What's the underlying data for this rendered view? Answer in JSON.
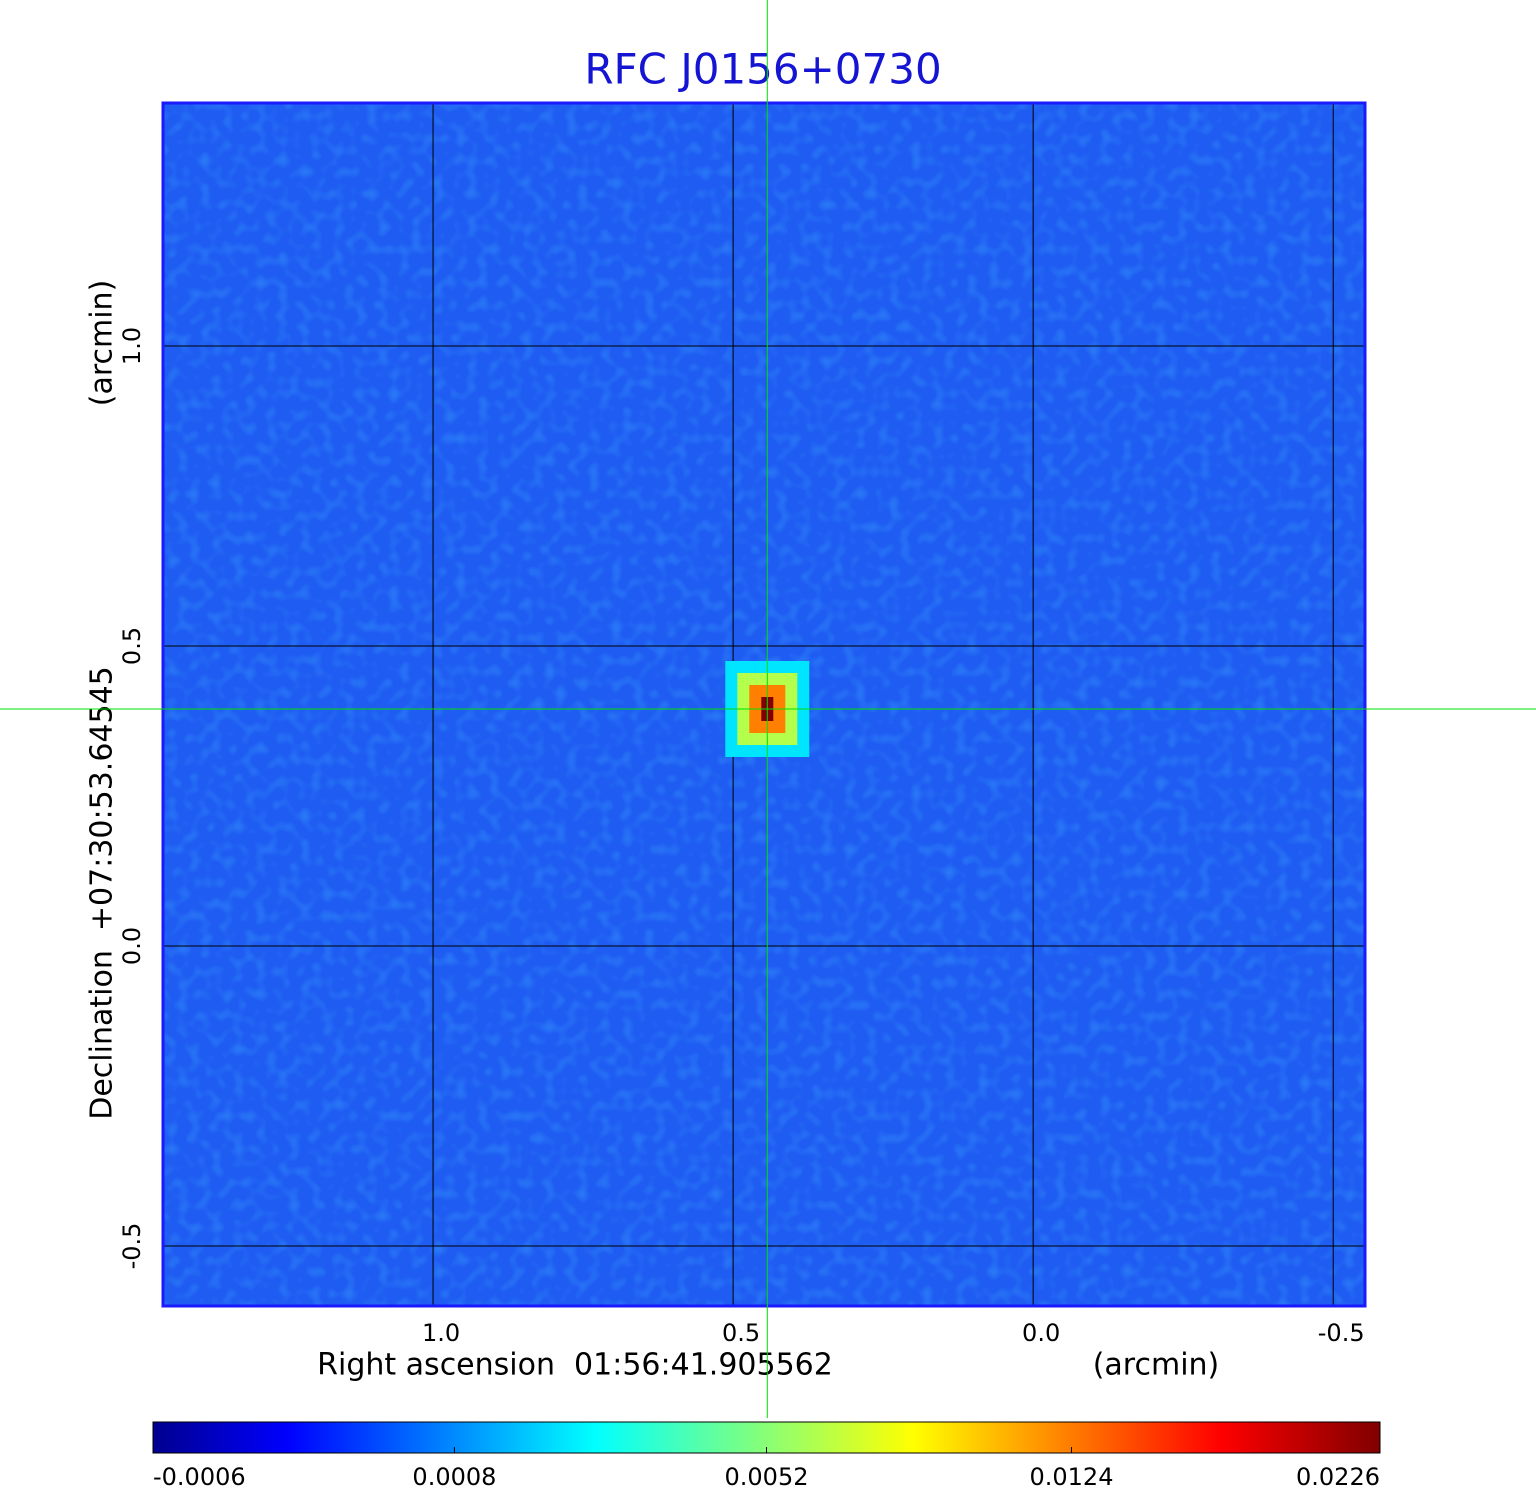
{
  "chart_data": {
    "type": "image",
    "title": "RFC J0156+0730",
    "x_label": "Right ascension  01:56:41.905562",
    "x_unit": "(arcmin)",
    "y_label": "Declination  +07:30:53.64545",
    "y_unit": "(arcmin)",
    "xlim": [
      1.45,
      -0.553
    ],
    "ylim": [
      -0.6,
      1.405
    ],
    "xticks": [
      {
        "value": 1.0,
        "label": "1.0"
      },
      0.5,
      {
        "value": 0.0,
        "label": "0.0"
      },
      -0.5
    ],
    "yticks": [
      -0.5,
      {
        "value": 0.0,
        "label": "0.0"
      },
      0.5,
      {
        "value": 1.0,
        "label": "1.0"
      }
    ],
    "grid": true,
    "crosshair_color": "#00e000",
    "source": {
      "x": 0.443,
      "y": 0.395,
      "peak": 0.0226
    },
    "color_scale": "sqrt",
    "colormap": "jet",
    "clim": [
      -0.0006,
      0.0226
    ],
    "cticks": [
      -0.0006,
      0.0008,
      0.0052,
      0.0124,
      0.0226
    ]
  }
}
